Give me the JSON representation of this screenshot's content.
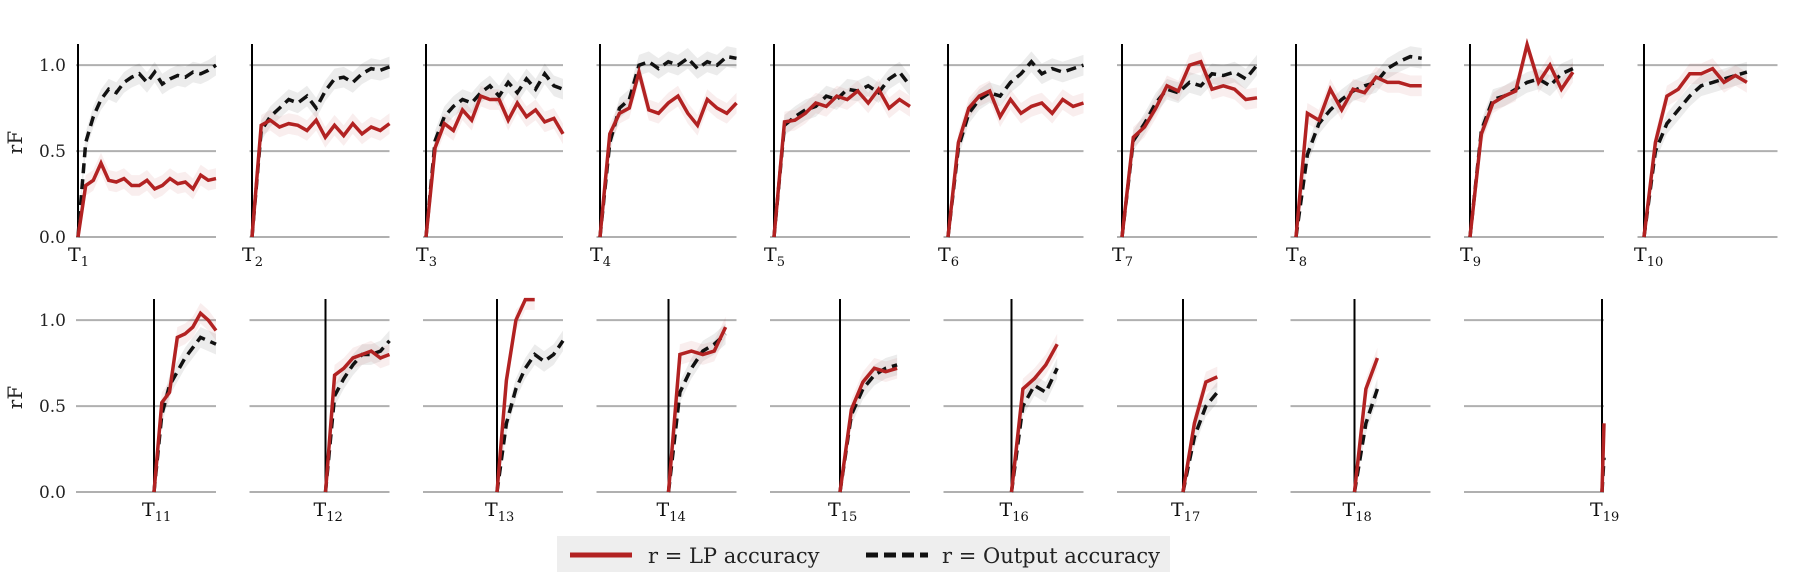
{
  "chart_data": {
    "type": "line",
    "ylabel": "rF",
    "ylim": [
      0,
      1.1
    ],
    "yticks": [
      "0.0",
      "0.5",
      "1.0"
    ],
    "grid": true,
    "legend_position": "bottom-center",
    "colors": {
      "lp": "#b22222",
      "output": "#111111",
      "grid": "#b0b0b0",
      "legend_bg": "#eeeeee"
    },
    "legend": [
      {
        "key": "lp",
        "label": "r = LP accuracy",
        "style": "solid"
      },
      {
        "key": "output",
        "label": "r = Output accuracy",
        "style": "dashed"
      }
    ],
    "panels": [
      {
        "task": "T",
        "sub": "1",
        "lp": [
          0,
          0.3,
          0.33,
          0.43,
          0.33,
          0.32,
          0.34,
          0.3,
          0.3,
          0.33,
          0.28,
          0.3,
          0.34,
          0.31,
          0.32,
          0.28,
          0.36,
          0.33,
          0.34
        ],
        "output": [
          0,
          0.55,
          0.7,
          0.8,
          0.86,
          0.84,
          0.9,
          0.93,
          0.95,
          0.9,
          0.96,
          0.89,
          0.92,
          0.94,
          0.93,
          0.96,
          0.95,
          0.97,
          1.0
        ]
      },
      {
        "task": "T",
        "sub": "2",
        "lp": [
          0,
          0.65,
          0.68,
          0.64,
          0.66,
          0.65,
          0.62,
          0.68,
          0.58,
          0.65,
          0.59,
          0.66,
          0.6,
          0.64,
          0.62,
          0.66
        ],
        "output": [
          0,
          0.62,
          0.7,
          0.75,
          0.8,
          0.78,
          0.82,
          0.75,
          0.85,
          0.92,
          0.93,
          0.9,
          0.95,
          0.98,
          0.97,
          0.99
        ]
      },
      {
        "task": "T",
        "sub": "3",
        "lp": [
          0,
          0.52,
          0.66,
          0.62,
          0.74,
          0.68,
          0.82,
          0.8,
          0.8,
          0.68,
          0.78,
          0.7,
          0.74,
          0.67,
          0.69,
          0.6
        ],
        "output": [
          0,
          0.56,
          0.7,
          0.76,
          0.8,
          0.78,
          0.84,
          0.88,
          0.82,
          0.9,
          0.84,
          0.92,
          0.86,
          0.95,
          0.88,
          0.86
        ]
      },
      {
        "task": "T",
        "sub": "4",
        "lp": [
          0,
          0.6,
          0.72,
          0.75,
          0.96,
          0.74,
          0.72,
          0.78,
          0.82,
          0.72,
          0.65,
          0.8,
          0.75,
          0.72,
          0.78
        ],
        "output": [
          0,
          0.55,
          0.75,
          0.8,
          1.0,
          1.02,
          0.98,
          1.02,
          1.0,
          1.04,
          0.98,
          1.02,
          1.0,
          1.05,
          1.04
        ]
      },
      {
        "task": "T",
        "sub": "5",
        "lp": [
          0,
          0.67,
          0.68,
          0.72,
          0.78,
          0.76,
          0.82,
          0.8,
          0.85,
          0.78,
          0.86,
          0.75,
          0.8,
          0.76
        ],
        "output": [
          0,
          0.65,
          0.7,
          0.74,
          0.76,
          0.82,
          0.8,
          0.86,
          0.85,
          0.88,
          0.84,
          0.92,
          0.96,
          0.88
        ]
      },
      {
        "task": "T",
        "sub": "6",
        "lp": [
          0,
          0.55,
          0.75,
          0.82,
          0.85,
          0.7,
          0.8,
          0.72,
          0.76,
          0.78,
          0.72,
          0.8,
          0.76,
          0.78
        ],
        "output": [
          0,
          0.52,
          0.72,
          0.8,
          0.84,
          0.82,
          0.9,
          0.95,
          1.02,
          0.95,
          0.98,
          0.96,
          0.98,
          1.0
        ]
      },
      {
        "task": "T",
        "sub": "7",
        "lp": [
          0,
          0.58,
          0.64,
          0.75,
          0.88,
          0.85,
          1.0,
          1.02,
          0.86,
          0.88,
          0.86,
          0.8,
          0.81
        ],
        "output": [
          0,
          0.56,
          0.66,
          0.78,
          0.86,
          0.84,
          0.9,
          0.88,
          0.95,
          0.94,
          0.96,
          0.92,
          1.0
        ]
      },
      {
        "task": "T",
        "sub": "8",
        "lp": [
          0,
          0.72,
          0.68,
          0.86,
          0.74,
          0.86,
          0.84,
          0.93,
          0.9,
          0.9,
          0.88,
          0.88
        ],
        "output": [
          0,
          0.48,
          0.66,
          0.74,
          0.8,
          0.85,
          0.88,
          0.9,
          0.98,
          1.02,
          1.05,
          1.04
        ]
      },
      {
        "task": "T",
        "sub": "9",
        "lp": [
          0,
          0.6,
          0.78,
          0.82,
          0.85,
          1.12,
          0.9,
          1.0,
          0.86,
          0.96
        ],
        "output": [
          0,
          0.62,
          0.8,
          0.82,
          0.86,
          0.9,
          0.92,
          0.88,
          0.95,
          0.98
        ]
      },
      {
        "task": "T",
        "sub": "10",
        "lp": [
          0,
          0.55,
          0.82,
          0.86,
          0.95,
          0.95,
          0.98,
          0.9,
          0.94,
          0.9
        ],
        "output": [
          0,
          0.5,
          0.66,
          0.74,
          0.82,
          0.88,
          0.9,
          0.92,
          0.94,
          0.96
        ]
      },
      {
        "task": "T",
        "sub": "11",
        "lp": [
          0,
          0.52,
          0.58,
          0.9,
          0.92,
          0.96,
          1.04,
          1.0,
          0.94
        ],
        "output": [
          0,
          0.45,
          0.62,
          0.7,
          0.78,
          0.84,
          0.9,
          0.88,
          0.86
        ]
      },
      {
        "task": "T",
        "sub": "12",
        "lp": [
          0,
          0.68,
          0.72,
          0.78,
          0.8,
          0.82,
          0.78,
          0.8
        ],
        "output": [
          0,
          0.56,
          0.66,
          0.74,
          0.8,
          0.8,
          0.82,
          0.88
        ]
      },
      {
        "task": "T",
        "sub": "13",
        "lp": [
          0,
          0.65,
          1.0,
          1.12,
          1.12
        ],
        "output": [
          0,
          0.4,
          0.6,
          0.72,
          0.8,
          0.76,
          0.8,
          0.88
        ]
      },
      {
        "task": "T",
        "sub": "14",
        "lp": [
          0,
          0.8,
          0.82,
          0.8,
          0.82,
          0.96
        ],
        "output": [
          0,
          0.58,
          0.72,
          0.82,
          0.86,
          0.92
        ]
      },
      {
        "task": "T",
        "sub": "15",
        "lp": [
          0,
          0.48,
          0.64,
          0.72,
          0.7,
          0.72
        ],
        "output": [
          0,
          0.45,
          0.6,
          0.68,
          0.72,
          0.74
        ]
      },
      {
        "task": "T",
        "sub": "16",
        "lp": [
          0,
          0.6,
          0.66,
          0.74,
          0.86
        ],
        "output": [
          0,
          0.5,
          0.62,
          0.58,
          0.72
        ]
      },
      {
        "task": "T",
        "sub": "17",
        "lp": [
          0,
          0.4,
          0.64,
          0.67
        ],
        "output": [
          0,
          0.32,
          0.5,
          0.58
        ]
      },
      {
        "task": "T",
        "sub": "18",
        "lp": [
          0,
          0.6,
          0.78
        ],
        "output": [
          0,
          0.4,
          0.6
        ]
      },
      {
        "task": "T",
        "sub": "19",
        "lp": [
          0,
          0.4
        ],
        "output": [
          0,
          0.2
        ]
      }
    ]
  }
}
